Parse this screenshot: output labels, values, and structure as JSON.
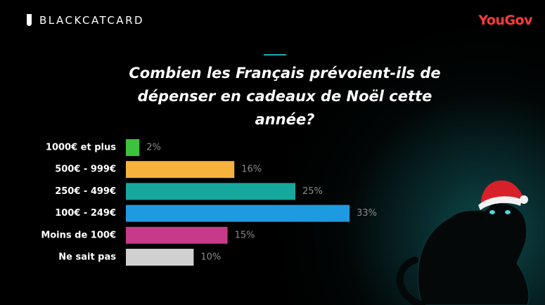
{
  "brand": {
    "left": "BLACKCATCARD",
    "right": "YouGov"
  },
  "chart_data": {
    "type": "bar",
    "orientation": "horizontal",
    "title": "Combien les Français prévoient-ils de dépenser en cadeaux de Noël cette année?",
    "categories": [
      "1000€ et plus",
      "500€ - 999€",
      "250€ - 499€",
      "100€ - 249€",
      "Moins de 100€",
      "Ne sait pas"
    ],
    "values": [
      2,
      16,
      25,
      33,
      15,
      10
    ],
    "value_labels": [
      "2%",
      "16%",
      "25%",
      "33%",
      "15%",
      "10%"
    ],
    "colors": [
      "#3cc23c",
      "#f6b23c",
      "#16a89c",
      "#1e9be0",
      "#c8398a",
      "#d0d0d0"
    ]
  }
}
